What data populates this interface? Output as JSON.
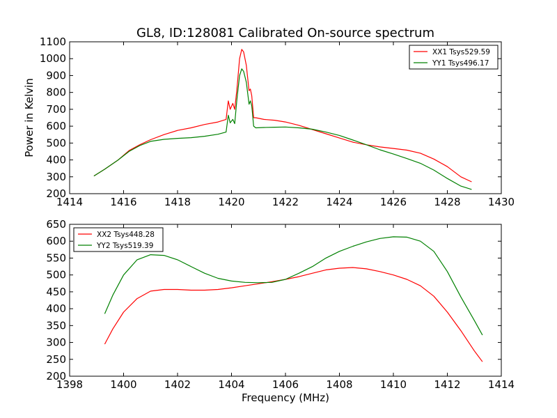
{
  "chart_data": [
    {
      "type": "line",
      "title": "GL8, ID:128081 Calibrated On-source spectrum",
      "xlabel": "",
      "ylabel": "Power in Kelvin",
      "xlim": [
        1414,
        1430
      ],
      "ylim": [
        200,
        1100
      ],
      "xticks": [
        1414,
        1416,
        1418,
        1420,
        1422,
        1424,
        1426,
        1428,
        1430
      ],
      "yticks": [
        200,
        300,
        400,
        500,
        600,
        700,
        800,
        900,
        1000,
        1100
      ],
      "legend_position": "top-right",
      "grid": false,
      "series": [
        {
          "name": "XX1 Tsys529.59",
          "color": "#ff0000",
          "x": [
            1414.9,
            1415.3,
            1415.8,
            1416.2,
            1416.6,
            1417.0,
            1417.5,
            1418.0,
            1418.5,
            1419.0,
            1419.5,
            1419.8,
            1419.88,
            1419.95,
            1420.05,
            1420.12,
            1420.2,
            1420.3,
            1420.38,
            1420.45,
            1420.55,
            1420.65,
            1420.7,
            1420.75,
            1420.82,
            1420.9,
            1421.2,
            1421.6,
            1422.0,
            1422.5,
            1423.0,
            1423.5,
            1424.0,
            1424.5,
            1425.0,
            1425.5,
            1426.0,
            1426.5,
            1427.0,
            1427.5,
            1428.0,
            1428.5,
            1428.9
          ],
          "y": [
            305,
            345,
            400,
            455,
            490,
            520,
            550,
            575,
            590,
            610,
            625,
            640,
            750,
            700,
            735,
            700,
            820,
            1000,
            1055,
            1040,
            960,
            810,
            820,
            780,
            650,
            650,
            640,
            635,
            625,
            605,
            580,
            555,
            530,
            505,
            490,
            477,
            468,
            458,
            440,
            405,
            360,
            300,
            270
          ]
        },
        {
          "name": "YY1 Tsys496.17",
          "color": "#008000",
          "x": [
            1414.9,
            1415.3,
            1415.8,
            1416.2,
            1416.6,
            1417.0,
            1417.5,
            1418.0,
            1418.5,
            1419.0,
            1419.5,
            1419.8,
            1419.88,
            1419.95,
            1420.05,
            1420.12,
            1420.2,
            1420.3,
            1420.38,
            1420.45,
            1420.55,
            1420.65,
            1420.7,
            1420.75,
            1420.82,
            1420.9,
            1421.2,
            1421.6,
            1422.0,
            1422.5,
            1423.0,
            1423.5,
            1424.0,
            1424.5,
            1425.0,
            1425.5,
            1426.0,
            1426.5,
            1427.0,
            1427.5,
            1428.0,
            1428.5,
            1428.9
          ],
          "y": [
            305,
            345,
            400,
            450,
            485,
            510,
            522,
            528,
            532,
            540,
            552,
            565,
            665,
            620,
            640,
            615,
            760,
            900,
            940,
            925,
            860,
            730,
            750,
            720,
            600,
            590,
            592,
            594,
            595,
            590,
            582,
            565,
            545,
            518,
            490,
            460,
            435,
            408,
            380,
            340,
            290,
            245,
            225
          ]
        }
      ]
    },
    {
      "type": "line",
      "title": "",
      "xlabel": "Frequency (MHz)",
      "ylabel": "",
      "xlim": [
        1398,
        1414
      ],
      "ylim": [
        200,
        650
      ],
      "xticks": [
        1398,
        1400,
        1402,
        1404,
        1406,
        1408,
        1410,
        1412,
        1414
      ],
      "yticks": [
        200,
        250,
        300,
        350,
        400,
        450,
        500,
        550,
        600,
        650
      ],
      "legend_position": "top-left",
      "grid": false,
      "series": [
        {
          "name": "XX2 Tsys448.28",
          "color": "#ff0000",
          "x": [
            1399.3,
            1399.6,
            1400.0,
            1400.5,
            1401.0,
            1401.5,
            1402.0,
            1402.5,
            1403.0,
            1403.5,
            1404.0,
            1404.5,
            1405.0,
            1405.5,
            1406.0,
            1406.5,
            1407.0,
            1407.5,
            1408.0,
            1408.5,
            1409.0,
            1409.5,
            1410.0,
            1410.5,
            1411.0,
            1411.5,
            1412.0,
            1412.5,
            1413.0,
            1413.3
          ],
          "y": [
            295,
            340,
            390,
            430,
            452,
            457,
            457,
            455,
            455,
            457,
            462,
            468,
            474,
            480,
            487,
            495,
            505,
            515,
            520,
            522,
            518,
            510,
            500,
            487,
            468,
            437,
            390,
            335,
            275,
            243
          ]
        },
        {
          "name": "YY2 Tsys519.39",
          "color": "#008000",
          "x": [
            1399.3,
            1399.6,
            1400.0,
            1400.5,
            1401.0,
            1401.5,
            1402.0,
            1402.5,
            1403.0,
            1403.5,
            1404.0,
            1404.5,
            1405.0,
            1405.5,
            1406.0,
            1406.5,
            1407.0,
            1407.5,
            1408.0,
            1408.5,
            1409.0,
            1409.5,
            1410.0,
            1410.5,
            1411.0,
            1411.5,
            1412.0,
            1412.5,
            1413.0,
            1413.3
          ],
          "y": [
            385,
            440,
            500,
            545,
            560,
            558,
            545,
            525,
            505,
            490,
            482,
            478,
            477,
            478,
            487,
            505,
            525,
            550,
            570,
            585,
            598,
            608,
            613,
            612,
            600,
            570,
            510,
            435,
            365,
            322
          ]
        }
      ]
    }
  ]
}
